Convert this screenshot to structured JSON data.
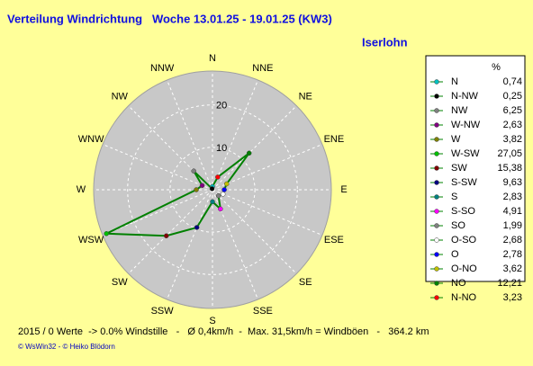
{
  "chart_data": {
    "type": "radar",
    "title": "Verteilung Windrichtung   Woche 13.01.25 - 19.01.25 (KW3)",
    "subtitle": "Iserlohn",
    "directions": [
      "N",
      "NNE",
      "NE",
      "ENE",
      "E",
      "ESE",
      "SE",
      "SSE",
      "S",
      "SSW",
      "SW",
      "WSW",
      "W",
      "WNW",
      "NW",
      "NNW"
    ],
    "categories": [
      "N",
      "N-NW",
      "NW",
      "W-NW",
      "W",
      "W-SW",
      "SW",
      "S-SW",
      "S",
      "S-SO",
      "SO",
      "O-SO",
      "O",
      "O-NO",
      "NO",
      "N-NO"
    ],
    "values": [
      0.74,
      0.25,
      6.25,
      2.63,
      3.82,
      27.05,
      15.38,
      9.63,
      2.83,
      4.91,
      1.99,
      2.68,
      2.78,
      3.62,
      12.21,
      3.23
    ],
    "value_labels": [
      "0,74",
      "0,25",
      "6,25",
      "2,63",
      "3,82",
      "27,05",
      "15,38",
      "9,63",
      "2,83",
      "4,91",
      "1,99",
      "2,68",
      "2,78",
      "3,62",
      "12,21",
      "3,23"
    ],
    "colors": [
      "#00c0c0",
      "#000000",
      "#808080",
      "#800080",
      "#808000",
      "#00c000",
      "#800000",
      "#000080",
      "#008080",
      "#ff00ff",
      "#808080",
      "#ffffff",
      "#0000ff",
      "#c0c000",
      "#008000",
      "#ff0000"
    ],
    "line_color": "#008000",
    "unit": "%",
    "rlim": [
      0,
      28
    ],
    "rticks": [
      10,
      20
    ],
    "footer": "2015 / 0 Werte  -> 0.0% Windstille   -   Ø 0,4km/h  -  Max. 31,5km/h = Windböen   -   364.2 km",
    "credits": "© WsWin32  - © Heiko Blödorn"
  }
}
